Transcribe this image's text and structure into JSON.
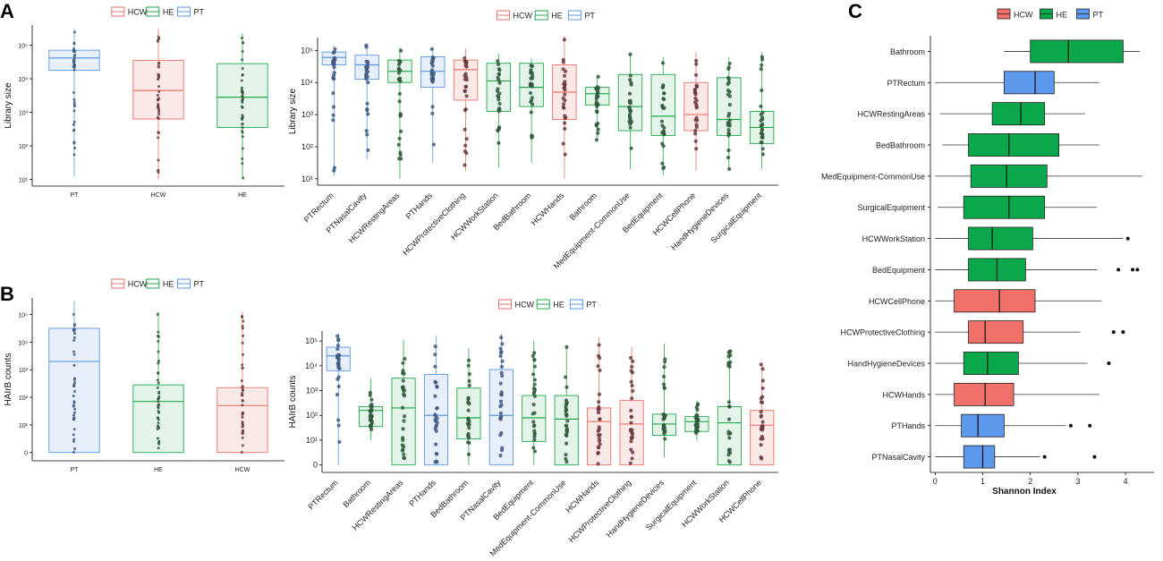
{
  "figure": {
    "panel_labels": [
      "A",
      "B",
      "C"
    ]
  },
  "colors": {
    "HCW": "#e8726a",
    "HE": "#1fa84a",
    "PT": "#5b97e0",
    "HCW_fill_light": "#fbe9e7",
    "HE_fill_light": "#e5f4ea",
    "PT_fill_light": "#e7effb",
    "HCW_dark": "#f0706a",
    "HE_dark": "#0aa84a",
    "PT_dark": "#5c98ec"
  },
  "chart_data": [
    {
      "id": "A-left",
      "type": "box",
      "scale": "log10",
      "ylabel": "Library size",
      "legend": [
        "HCW",
        "HE",
        "PT"
      ],
      "yticks": [
        {
          "v": 1,
          "label": "10¹"
        },
        {
          "v": 2,
          "label": "10²"
        },
        {
          "v": 3,
          "label": "10³"
        },
        {
          "v": 4,
          "label": "10⁴"
        },
        {
          "v": 5,
          "label": "10⁵"
        }
      ],
      "ylim": [
        0.8,
        5.6
      ],
      "categories": [
        "PT",
        "HCW",
        "HE"
      ],
      "boxes": [
        {
          "label": "PT",
          "group": "PT",
          "q1": 4.25,
          "median": 4.62,
          "q3": 4.85,
          "min": 1.1,
          "max": 5.5
        },
        {
          "label": "HCW",
          "group": "HCW",
          "q1": 2.8,
          "median": 3.65,
          "q3": 4.55,
          "min": 1.0,
          "max": 5.5
        },
        {
          "label": "HE",
          "group": "HE",
          "q1": 2.55,
          "median": 3.45,
          "q3": 4.45,
          "min": 1.0,
          "max": 5.35
        }
      ]
    },
    {
      "id": "A-right",
      "type": "box",
      "scale": "log10",
      "ylabel": "Library size",
      "legend": [
        "HCW",
        "HE",
        "PT"
      ],
      "yticks": [
        {
          "v": 1,
          "label": "10¹"
        },
        {
          "v": 2,
          "label": "10²"
        },
        {
          "v": 3,
          "label": "10³"
        },
        {
          "v": 4,
          "label": "10⁴"
        },
        {
          "v": 5,
          "label": "10⁵"
        }
      ],
      "ylim": [
        0.8,
        5.4
      ],
      "categories": [
        "PTRectum",
        "PTNasalCavity",
        "HCWRestingAreas",
        "PTHands",
        "HCWProtectiveClothing",
        "HCWWorkStation",
        "BedBathroom",
        "HCWHands",
        "Bathroom",
        "MedEquipment-CommonUse",
        "BedEquipment",
        "HCWCellPhone",
        "HandHygieneDevices",
        "SurgicalEquipment"
      ],
      "boxes": [
        {
          "label": "PTRectum",
          "group": "PT",
          "q1": 4.55,
          "median": 4.78,
          "q3": 4.95,
          "min": 1.1,
          "max": 5.15
        },
        {
          "label": "PTNasalCavity",
          "group": "PT",
          "q1": 4.1,
          "median": 4.55,
          "q3": 4.85,
          "min": 1.6,
          "max": 5.2
        },
        {
          "label": "HCWRestingAreas",
          "group": "HE",
          "q1": 4.0,
          "median": 4.35,
          "q3": 4.7,
          "min": 1.0,
          "max": 5.1
        },
        {
          "label": "PTHands",
          "group": "PT",
          "q1": 3.85,
          "median": 4.35,
          "q3": 4.8,
          "min": 1.5,
          "max": 5.1
        },
        {
          "label": "HCWProtectiveClothing",
          "group": "HCW",
          "q1": 3.45,
          "median": 4.4,
          "q3": 4.7,
          "min": 1.25,
          "max": 5.05
        },
        {
          "label": "HCWWorkStation",
          "group": "HE",
          "q1": 3.1,
          "median": 4.05,
          "q3": 4.6,
          "min": 1.35,
          "max": 4.9
        },
        {
          "label": "BedBathroom",
          "group": "HE",
          "q1": 3.25,
          "median": 3.85,
          "q3": 4.6,
          "min": 1.5,
          "max": 4.75
        },
        {
          "label": "HCWHands",
          "group": "HCW",
          "q1": 2.85,
          "median": 3.7,
          "q3": 4.55,
          "min": 1.0,
          "max": 5.45
        },
        {
          "label": "Bathroom",
          "group": "HE",
          "q1": 3.3,
          "median": 3.65,
          "q3": 3.85,
          "min": 2.2,
          "max": 4.2
        },
        {
          "label": "MedEquipment-CommonUse",
          "group": "HE",
          "q1": 2.5,
          "median": 3.25,
          "q3": 4.25,
          "min": 1.3,
          "max": 4.9
        },
        {
          "label": "BedEquipment",
          "group": "HE",
          "q1": 2.35,
          "median": 2.95,
          "q3": 4.25,
          "min": 1.1,
          "max": 4.8
        },
        {
          "label": "HCWCellPhone",
          "group": "HCW",
          "q1": 2.5,
          "median": 3.0,
          "q3": 4.0,
          "min": 1.25,
          "max": 4.95
        },
        {
          "label": "HandHygieneDevices",
          "group": "HE",
          "q1": 2.35,
          "median": 2.85,
          "q3": 4.15,
          "min": 1.3,
          "max": 4.8
        },
        {
          "label": "SurgicalEquipment",
          "group": "HE",
          "q1": 2.1,
          "median": 2.6,
          "q3": 3.1,
          "min": 1.3,
          "max": 4.95
        }
      ]
    },
    {
      "id": "B-left",
      "type": "box",
      "scale": "pseudo-log",
      "ylabel": "HAIrB counts",
      "legend": [
        "HCW",
        "HE",
        "PT"
      ],
      "yticks": [
        {
          "v": 0,
          "label": "0"
        },
        {
          "v": 1,
          "label": "10¹"
        },
        {
          "v": 2,
          "label": "10²"
        },
        {
          "v": 3,
          "label": "10³"
        },
        {
          "v": 4,
          "label": "10⁴"
        },
        {
          "v": 5,
          "label": "10⁵"
        }
      ],
      "ylim": [
        -0.3,
        5.6
      ],
      "categories": [
        "PT",
        "HE",
        "HCW"
      ],
      "boxes": [
        {
          "label": "PT",
          "group": "PT",
          "q1": 0.0,
          "median": 3.3,
          "q3": 4.5,
          "min": 0.0,
          "max": 5.5
        },
        {
          "label": "HE",
          "group": "HE",
          "q1": 0.0,
          "median": 1.85,
          "q3": 2.45,
          "min": 0.0,
          "max": 5.1
        },
        {
          "label": "HCW",
          "group": "HCW",
          "q1": 0.0,
          "median": 1.7,
          "q3": 2.35,
          "min": 0.0,
          "max": 5.1
        }
      ]
    },
    {
      "id": "B-right",
      "type": "box",
      "scale": "pseudo-log",
      "ylabel": "HAIrB counts",
      "legend": [
        "HCW",
        "HE",
        "PT"
      ],
      "yticks": [
        {
          "v": 0,
          "label": "0"
        },
        {
          "v": 1,
          "label": "10¹"
        },
        {
          "v": 2,
          "label": "10²"
        },
        {
          "v": 3,
          "label": "10³"
        },
        {
          "v": 4,
          "label": "10⁴"
        },
        {
          "v": 5,
          "label": "10⁵"
        }
      ],
      "ylim": [
        -0.3,
        5.4
      ],
      "categories": [
        "PTRectum",
        "Bathroom",
        "HCWRestingAreas",
        "PTHands",
        "BedBathroom",
        "PTNasalCavity",
        "BedEquipment",
        "MedEquipment-CommonUse",
        "HCWHands",
        "HCWProtectiveClothing",
        "HandHygieneDevices",
        "SurgicalEquipment",
        "HCWWorkStation",
        "HCWCellPhone"
      ],
      "boxes": [
        {
          "label": "PTRectum",
          "group": "PT",
          "q1": 3.8,
          "median": 4.4,
          "q3": 4.75,
          "min": 0.0,
          "max": 5.3
        },
        {
          "label": "Bathroom",
          "group": "HE",
          "q1": 1.55,
          "median": 2.2,
          "q3": 2.35,
          "min": 1.0,
          "max": 3.5
        },
        {
          "label": "HCWRestingAreas",
          "group": "HE",
          "q1": 0.0,
          "median": 2.3,
          "q3": 3.5,
          "min": 0.0,
          "max": 5.05
        },
        {
          "label": "PTHands",
          "group": "PT",
          "q1": 0.0,
          "median": 2.0,
          "q3": 3.65,
          "min": 0.0,
          "max": 5.2
        },
        {
          "label": "BedBathroom",
          "group": "HE",
          "q1": 1.05,
          "median": 1.9,
          "q3": 3.1,
          "min": 0.0,
          "max": 4.7
        },
        {
          "label": "PTNasalCavity",
          "group": "PT",
          "q1": 0.0,
          "median": 2.0,
          "q3": 3.85,
          "min": 0.0,
          "max": 5.3
        },
        {
          "label": "BedEquipment",
          "group": "HE",
          "q1": 0.95,
          "median": 1.9,
          "q3": 2.8,
          "min": 0.0,
          "max": 5.0
        },
        {
          "label": "MedEquipment-CommonUse",
          "group": "HE",
          "q1": 0.0,
          "median": 1.85,
          "q3": 2.8,
          "min": 0.0,
          "max": 4.85
        },
        {
          "label": "HCWHands",
          "group": "HCW",
          "q1": 0.0,
          "median": 1.75,
          "q3": 2.3,
          "min": 0.0,
          "max": 5.15
        },
        {
          "label": "HCWProtectiveClothing",
          "group": "HCW",
          "q1": 0.0,
          "median": 1.65,
          "q3": 2.6,
          "min": 0.0,
          "max": 4.75
        },
        {
          "label": "HandHygieneDevices",
          "group": "HE",
          "q1": 1.2,
          "median": 1.65,
          "q3": 2.05,
          "min": 0.3,
          "max": 4.9
        },
        {
          "label": "SurgicalEquipment",
          "group": "HE",
          "q1": 1.35,
          "median": 1.75,
          "q3": 1.95,
          "min": 1.0,
          "max": 2.6
        },
        {
          "label": "HCWWorkStation",
          "group": "HE",
          "q1": 0.0,
          "median": 1.7,
          "q3": 2.35,
          "min": 0.0,
          "max": 4.6
        },
        {
          "label": "HCWCellPhone",
          "group": "HCW",
          "q1": 0.0,
          "median": 1.6,
          "q3": 2.2,
          "min": 0.0,
          "max": 4.1
        }
      ]
    },
    {
      "id": "C",
      "type": "box-horizontal",
      "xlabel": "Shannon Index",
      "legend": [
        "HCW",
        "HE",
        "PT"
      ],
      "xticks": [
        0,
        1,
        2,
        3,
        4
      ],
      "xlim": [
        -0.1,
        4.6
      ],
      "categories": [
        "Bathroom",
        "PTRectum",
        "HCWRestingAreas",
        "BedBathroom",
        "MedEquipment-CommonUse",
        "SurgicalEquipment",
        "HCWWorkStation",
        "BedEquipment",
        "HCWCellPhone",
        "HCWProtectiveClothing",
        "HandHygieneDevices",
        "HCWHands",
        "PTHands",
        "PTNasalCavity"
      ],
      "boxes": [
        {
          "label": "Bathroom",
          "group": "HE",
          "min": 1.45,
          "q1": 2.0,
          "median": 2.8,
          "q3": 3.95,
          "max": 4.3,
          "outliers": []
        },
        {
          "label": "PTRectum",
          "group": "PT",
          "min": 0.0,
          "q1": 1.45,
          "median": 2.1,
          "q3": 2.5,
          "max": 3.45,
          "outliers": []
        },
        {
          "label": "HCWRestingAreas",
          "group": "HE",
          "min": 0.1,
          "q1": 1.2,
          "median": 1.8,
          "q3": 2.3,
          "max": 3.15,
          "outliers": []
        },
        {
          "label": "BedBathroom",
          "group": "HE",
          "min": 0.15,
          "q1": 0.7,
          "median": 1.55,
          "q3": 2.6,
          "max": 3.45,
          "outliers": []
        },
        {
          "label": "MedEquipment-CommonUse",
          "group": "HE",
          "min": 0.0,
          "q1": 0.75,
          "median": 1.5,
          "q3": 2.35,
          "max": 4.35,
          "outliers": []
        },
        {
          "label": "SurgicalEquipment",
          "group": "HE",
          "min": 0.05,
          "q1": 0.6,
          "median": 1.55,
          "q3": 2.3,
          "max": 3.4,
          "outliers": []
        },
        {
          "label": "HCWWorkStation",
          "group": "HE",
          "min": 0.0,
          "q1": 0.7,
          "median": 1.2,
          "q3": 2.05,
          "max": 3.95,
          "outliers": [
            4.05
          ]
        },
        {
          "label": "BedEquipment",
          "group": "HE",
          "min": 0.0,
          "q1": 0.7,
          "median": 1.3,
          "q3": 1.9,
          "max": 3.4,
          "outliers": [
            3.85,
            4.15,
            4.25
          ]
        },
        {
          "label": "HCWCellPhone",
          "group": "HCW",
          "min": 0.0,
          "q1": 0.4,
          "median": 1.35,
          "q3": 2.1,
          "max": 3.5,
          "outliers": []
        },
        {
          "label": "HCWProtectiveClothing",
          "group": "HCW",
          "min": 0.0,
          "q1": 0.7,
          "median": 1.05,
          "q3": 1.85,
          "max": 3.05,
          "outliers": [
            3.75,
            3.95
          ]
        },
        {
          "label": "HandHygieneDevices",
          "group": "HE",
          "min": 0.0,
          "q1": 0.6,
          "median": 1.1,
          "q3": 1.75,
          "max": 3.2,
          "outliers": [
            3.65
          ]
        },
        {
          "label": "HCWHands",
          "group": "HCW",
          "min": 0.0,
          "q1": 0.4,
          "median": 1.05,
          "q3": 1.65,
          "max": 3.45,
          "outliers": []
        },
        {
          "label": "PTHands",
          "group": "PT",
          "min": 0.0,
          "q1": 0.55,
          "median": 0.9,
          "q3": 1.45,
          "max": 2.75,
          "outliers": [
            2.85,
            3.25
          ]
        },
        {
          "label": "PTNasalCavity",
          "group": "PT",
          "min": 0.0,
          "q1": 0.6,
          "median": 1.0,
          "q3": 1.25,
          "max": 2.2,
          "outliers": [
            2.3,
            3.35
          ]
        }
      ]
    }
  ]
}
